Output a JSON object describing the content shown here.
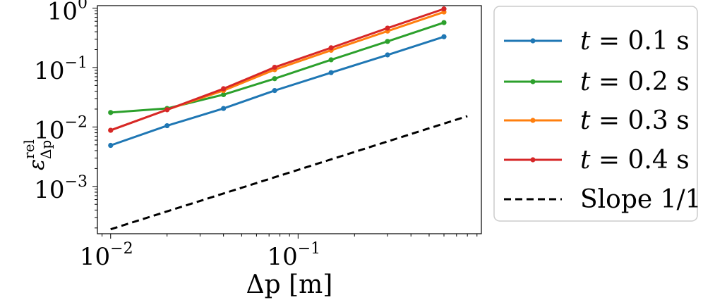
{
  "chart_data": {
    "type": "line",
    "xscale": "log",
    "yscale": "log",
    "xlim": [
      0.0085,
      0.95
    ],
    "ylim": [
      0.00016,
      1.1
    ],
    "xlabel": "Δp [m]",
    "ylabel": "ε",
    "ylabel_sup": "rel",
    "ylabel_sub": "Δp",
    "xticks": [
      {
        "value": 0.01,
        "base": "10",
        "exp": "−2"
      },
      {
        "value": 0.1,
        "base": "10",
        "exp": "−1"
      }
    ],
    "yticks": [
      {
        "value": 0.001,
        "base": "10",
        "exp": "−3"
      },
      {
        "value": 0.01,
        "base": "10",
        "exp": "−2"
      },
      {
        "value": 0.1,
        "base": "10",
        "exp": "−1"
      },
      {
        "value": 1,
        "base": "10",
        "exp": "0"
      }
    ],
    "x": [
      0.01,
      0.02,
      0.04,
      0.075,
      0.15,
      0.3,
      0.6
    ],
    "series": [
      {
        "name": "t = 0.1 s",
        "var": "t",
        "rest": " = 0.1 s",
        "color": "#1f77b4",
        "values": [
          0.0049,
          0.0105,
          0.0205,
          0.041,
          0.082,
          0.163,
          0.33
        ]
      },
      {
        "name": "t = 0.2 s",
        "var": "t",
        "rest": " = 0.2 s",
        "color": "#2ca02c",
        "values": [
          0.0175,
          0.0205,
          0.035,
          0.065,
          0.135,
          0.275,
          0.57
        ]
      },
      {
        "name": "t = 0.3 s",
        "var": "t",
        "rest": " = 0.3 s",
        "color": "#ff7f0e",
        "values": [
          0.0088,
          0.0195,
          0.041,
          0.092,
          0.195,
          0.41,
          0.86
        ]
      },
      {
        "name": "t = 0.4 s",
        "var": "t",
        "rest": " = 0.4 s",
        "color": "#d62728",
        "values": [
          0.0088,
          0.0195,
          0.044,
          0.101,
          0.215,
          0.46,
          0.97
        ]
      }
    ],
    "reference": {
      "name": "Slope 1/1",
      "label": "Slope 1/1",
      "color": "#000000",
      "style": "dashed",
      "x": [
        0.01,
        0.8
      ],
      "values": [
        0.00019,
        0.0152
      ]
    },
    "legend_position": "outside-right"
  }
}
